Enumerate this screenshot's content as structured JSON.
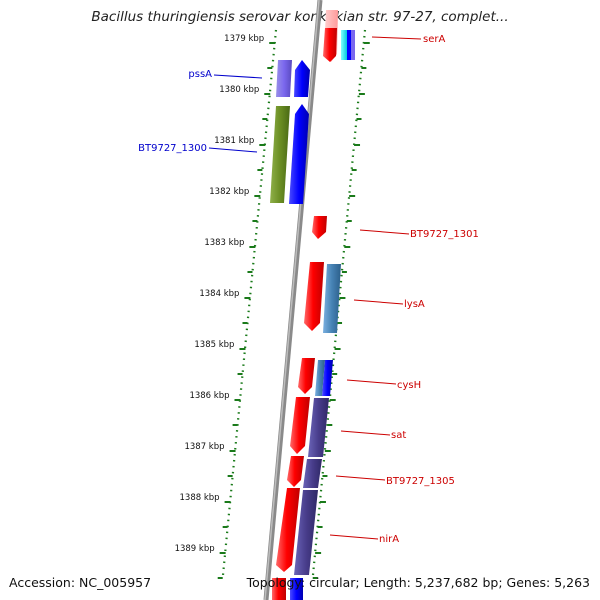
{
  "title": "Bacillus thuringiensis serovar konkukian str. 97-27, complet...",
  "footer": {
    "accession": "Accession: NC_005957",
    "summary": "Topology: circular; Length: 5,237,682 bp; Genes: 5,263"
  },
  "colors": {
    "forward_label": "#0000cc",
    "reverse_label": "#cc0000",
    "tick": "#1a7a1a",
    "backbone": "#8a8a8a"
  },
  "ticks": [
    {
      "label": "1379 kbp"
    },
    {
      "label": "1380 kbp"
    },
    {
      "label": "1381 kbp"
    },
    {
      "label": "1382 kbp"
    },
    {
      "label": "1383 kbp"
    },
    {
      "label": "1384 kbp"
    },
    {
      "label": "1385 kbp"
    },
    {
      "label": "1386 kbp"
    },
    {
      "label": "1387 kbp"
    },
    {
      "label": "1388 kbp"
    },
    {
      "label": "1389 kbp"
    }
  ],
  "labels": [
    {
      "text": "pssA",
      "strand": "forward"
    },
    {
      "text": "BT9727_1300",
      "strand": "forward"
    },
    {
      "text": "serA",
      "strand": "reverse"
    },
    {
      "text": "BT9727_1301",
      "strand": "reverse"
    },
    {
      "text": "lysA",
      "strand": "reverse"
    },
    {
      "text": "cysH",
      "strand": "reverse"
    },
    {
      "text": "sat",
      "strand": "reverse"
    },
    {
      "text": "BT9727_1305",
      "strand": "reverse"
    },
    {
      "text": "nirA",
      "strand": "reverse"
    }
  ]
}
